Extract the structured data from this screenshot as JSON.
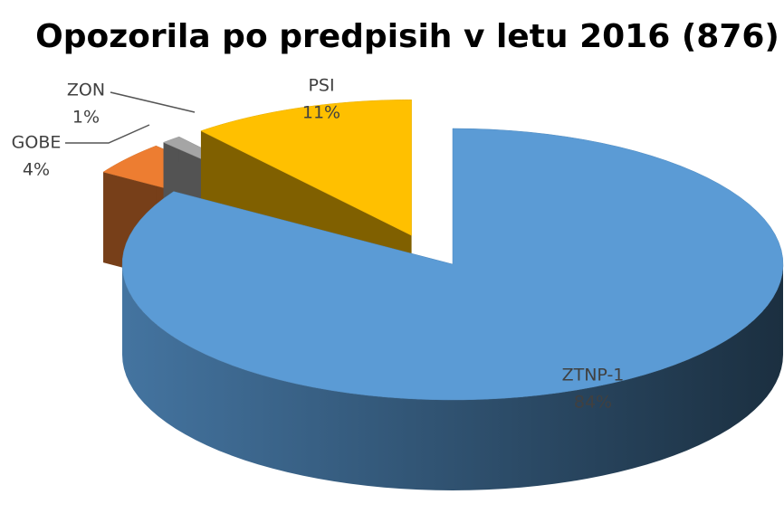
{
  "chart_data": {
    "type": "pie",
    "title": "Opozorila po predpisih v letu 2016 (876)",
    "categories": [
      "ZTNP-1",
      "GOBE",
      "ZON",
      "PSI"
    ],
    "values": [
      84,
      4,
      1,
      11
    ],
    "value_labels": [
      "84%",
      "4%",
      "1%",
      "11%"
    ],
    "colors": [
      "#5b9bd5",
      "#ed7d31",
      "#a5a5a5",
      "#ffc000"
    ]
  }
}
